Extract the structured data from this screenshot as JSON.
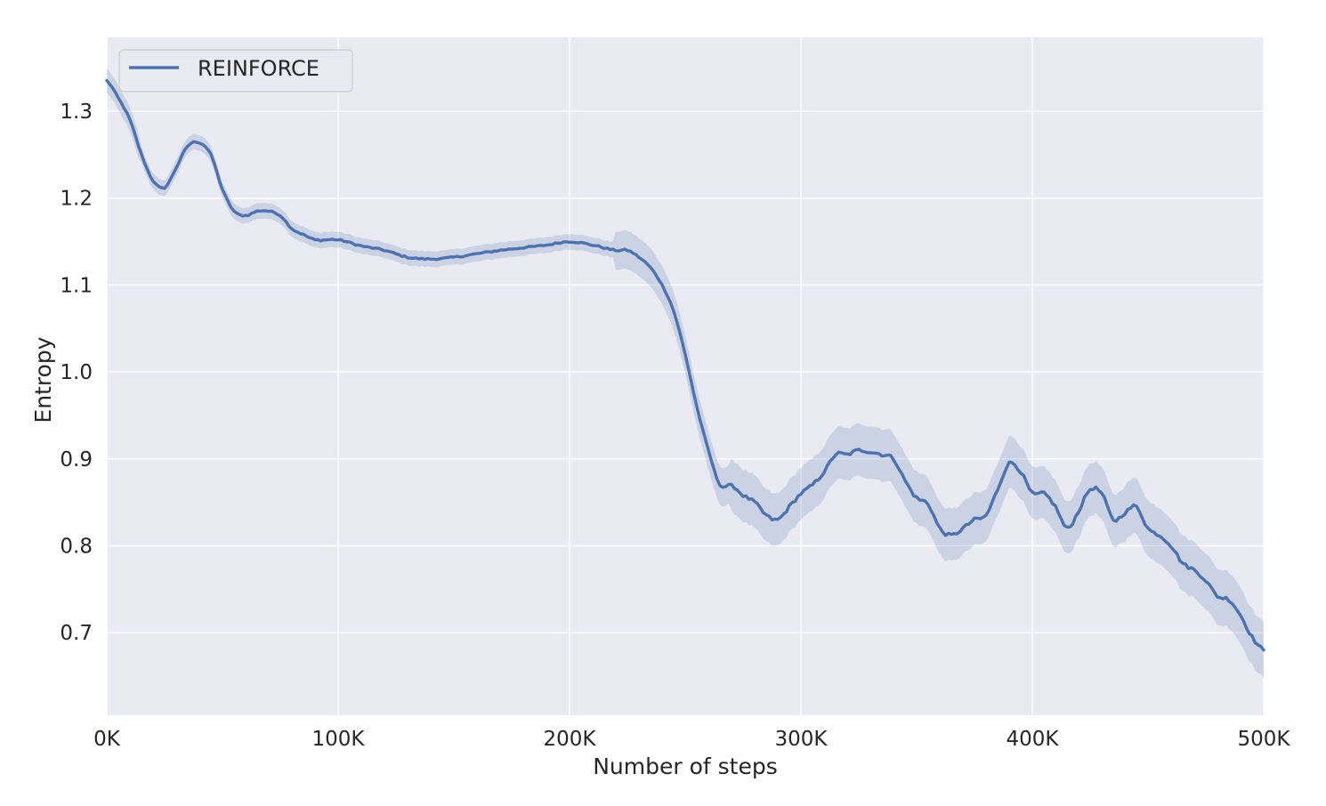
{
  "chart_data": {
    "type": "line",
    "title": "",
    "xlabel": "Number of steps",
    "ylabel": "Entropy",
    "xlim": [
      0,
      500000
    ],
    "ylim": [
      0.605,
      1.385
    ],
    "x_ticks": [
      0,
      100000,
      200000,
      300000,
      400000,
      500000
    ],
    "x_tick_labels": [
      "0K",
      "100K",
      "200K",
      "300K",
      "400K",
      "500K"
    ],
    "y_ticks": [
      0.7,
      0.8,
      0.9,
      1.0,
      1.1,
      1.2,
      1.3
    ],
    "y_tick_labels": [
      "0.7",
      "0.8",
      "0.9",
      "1.0",
      "1.1",
      "1.2",
      "1.3"
    ],
    "grid": true,
    "legend_position": "top-left",
    "colors": {
      "background": "#eaeaf2",
      "grid": "#ffffff",
      "line": "#4c72b0",
      "band": "#4c72b0"
    },
    "series": [
      {
        "name": "REINFORCE",
        "x": [
          0,
          5000,
          10000,
          15000,
          20000,
          25000,
          30000,
          35000,
          40000,
          45000,
          50000,
          55000,
          60000,
          65000,
          70000,
          75000,
          80000,
          85000,
          90000,
          100000,
          110000,
          120000,
          130000,
          140000,
          150000,
          160000,
          170000,
          180000,
          190000,
          200000,
          210000,
          220000,
          225000,
          230000,
          235000,
          240000,
          245000,
          250000,
          255000,
          260000,
          265000,
          270000,
          275000,
          280000,
          285000,
          290000,
          295000,
          300000,
          305000,
          310000,
          315000,
          320000,
          325000,
          330000,
          335000,
          340000,
          345000,
          350000,
          355000,
          360000,
          365000,
          370000,
          375000,
          380000,
          385000,
          390000,
          395000,
          400000,
          405000,
          410000,
          415000,
          420000,
          425000,
          430000,
          435000,
          440000,
          445000,
          450000,
          455000,
          460000,
          465000,
          470000,
          475000,
          480000,
          485000,
          490000,
          495000,
          500000
        ],
        "y": [
          1.335,
          1.315,
          1.29,
          1.25,
          1.22,
          1.212,
          1.235,
          1.26,
          1.264,
          1.25,
          1.21,
          1.185,
          1.18,
          1.185,
          1.185,
          1.18,
          1.165,
          1.158,
          1.152,
          1.152,
          1.145,
          1.14,
          1.132,
          1.13,
          1.132,
          1.136,
          1.14,
          1.143,
          1.146,
          1.15,
          1.146,
          1.14,
          1.14,
          1.132,
          1.12,
          1.1,
          1.07,
          1.02,
          0.96,
          0.91,
          0.87,
          0.87,
          0.858,
          0.85,
          0.835,
          0.83,
          0.845,
          0.86,
          0.87,
          0.885,
          0.905,
          0.905,
          0.91,
          0.908,
          0.905,
          0.9,
          0.875,
          0.855,
          0.848,
          0.82,
          0.812,
          0.82,
          0.83,
          0.835,
          0.865,
          0.895,
          0.885,
          0.86,
          0.86,
          0.845,
          0.82,
          0.84,
          0.865,
          0.86,
          0.83,
          0.838,
          0.845,
          0.82,
          0.812,
          0.8,
          0.78,
          0.772,
          0.76,
          0.742,
          0.738,
          0.72,
          0.695,
          0.68
        ]
      }
    ]
  }
}
